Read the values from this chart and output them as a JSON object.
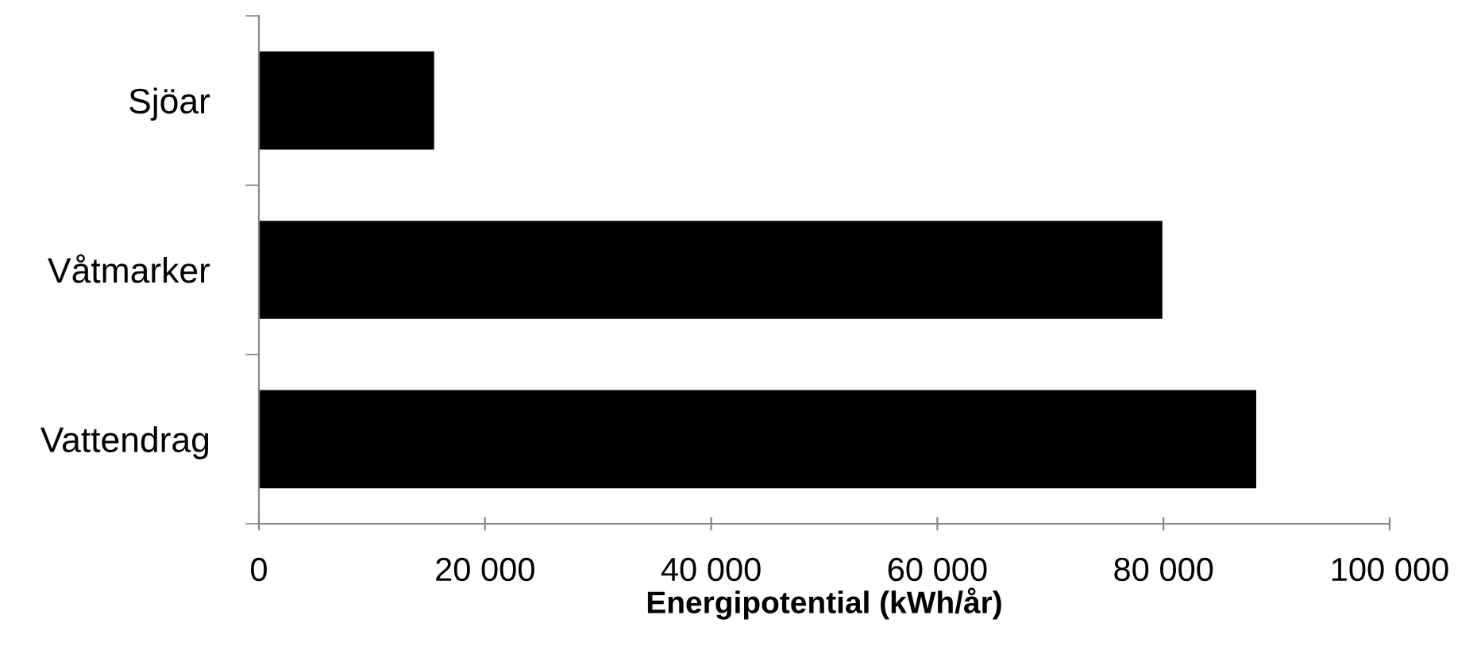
{
  "chart_data": {
    "type": "bar",
    "orientation": "horizontal",
    "categories": [
      "Sjöar",
      "Våtmarker",
      "Vattendrag"
    ],
    "values": [
      15500,
      79900,
      88200
    ],
    "color": "#000000",
    "xlabel": "Energipotential (kWh/år)",
    "xlim": [
      0,
      100000
    ],
    "xticks": [
      {
        "value": 0,
        "label": "0"
      },
      {
        "value": 20000,
        "label": "20 000"
      },
      {
        "value": 40000,
        "label": "40 000"
      },
      {
        "value": 60000,
        "label": "60 000"
      },
      {
        "value": 80000,
        "label": "80 000"
      },
      {
        "value": 100000,
        "label": "100 000"
      }
    ],
    "grid": false,
    "legend": false
  }
}
